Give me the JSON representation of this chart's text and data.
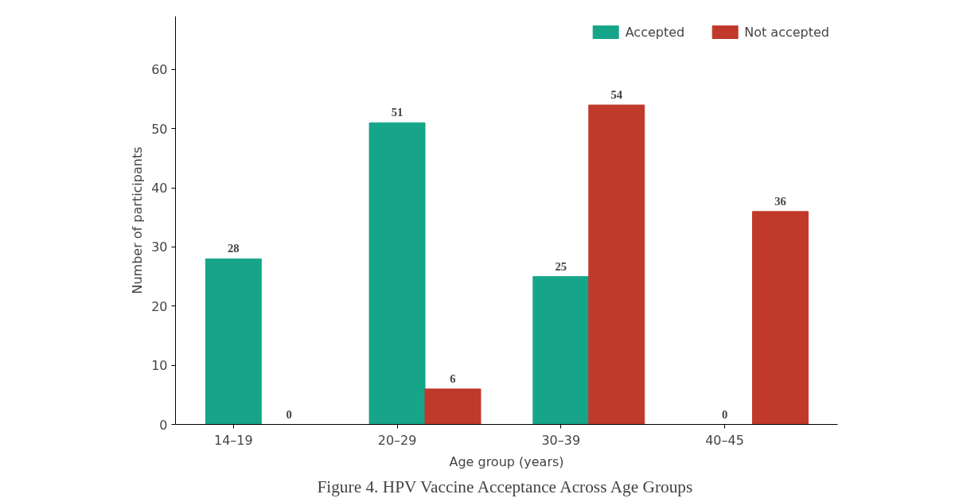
{
  "chart_data": {
    "type": "bar",
    "xlabel": "Age group (years)",
    "ylabel": "Number of participants",
    "categories": [
      "14–19",
      "20–29",
      "30–39",
      "40–45"
    ],
    "series": [
      {
        "name": "Accepted",
        "color": "#17a589",
        "values": [
          28,
          51,
          25,
          0
        ]
      },
      {
        "name": "Not accepted",
        "color": "#c0392b",
        "values": [
          0,
          6,
          54,
          36
        ]
      }
    ],
    "ylim": [
      0,
      69
    ],
    "yticks": [
      0,
      10,
      20,
      30,
      40,
      50,
      60
    ],
    "data_labels": true,
    "legend": "top right",
    "grid": false,
    "annotations": [
      "Figure 4. HPV Vaccine Acceptance Across Age Groups"
    ]
  }
}
